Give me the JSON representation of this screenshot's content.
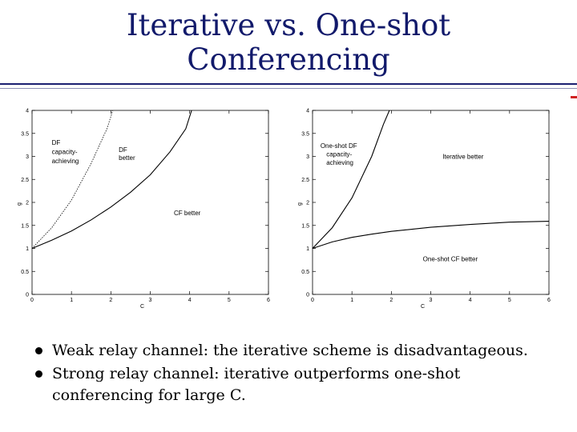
{
  "slide": {
    "title_line1": "Iterative vs. One-shot",
    "title_line2": "Conferencing",
    "bullets": [
      "Weak relay channel: the iterative scheme is disadvantageous.",
      "Strong relay channel: iterative outperforms one-shot conferencing for large C."
    ]
  },
  "chart_data": [
    {
      "type": "line",
      "xlabel": "C",
      "ylabel": "g",
      "xlim": [
        0,
        6
      ],
      "ylim": [
        0,
        4
      ],
      "xticks": [
        0,
        1,
        2,
        3,
        4,
        5,
        6
      ],
      "yticks": [
        0,
        0.5,
        1,
        1.5,
        2,
        2.5,
        3,
        3.5,
        4
      ],
      "grid": false,
      "series": [
        {
          "style": "dotted",
          "points": [
            [
              0,
              1
            ],
            [
              0.5,
              1.45
            ],
            [
              1,
              2.05
            ],
            [
              1.5,
              2.85
            ],
            [
              1.9,
              3.6
            ],
            [
              2.05,
              4
            ]
          ]
        },
        {
          "style": "solid",
          "points": [
            [
              0,
              1
            ],
            [
              0.5,
              1.18
            ],
            [
              1,
              1.38
            ],
            [
              1.5,
              1.62
            ],
            [
              2,
              1.9
            ],
            [
              2.5,
              2.22
            ],
            [
              3,
              2.6
            ],
            [
              3.5,
              3.1
            ],
            [
              3.9,
              3.6
            ],
            [
              4.05,
              4
            ]
          ]
        }
      ],
      "annotations": [
        {
          "text": "DF",
          "x": 0.5,
          "y": 3.25
        },
        {
          "text": "capacity-",
          "x": 0.5,
          "y": 3.05
        },
        {
          "text": "achieving",
          "x": 0.5,
          "y": 2.85
        },
        {
          "text": "DF",
          "x": 2.2,
          "y": 3.1
        },
        {
          "text": "better",
          "x": 2.2,
          "y": 2.92
        },
        {
          "text": "CF better",
          "x": 3.6,
          "y": 1.72
        }
      ]
    },
    {
      "type": "line",
      "xlabel": "C",
      "ylabel": "g",
      "xlim": [
        0,
        6
      ],
      "ylim": [
        0,
        4
      ],
      "xticks": [
        0,
        1,
        2,
        3,
        4,
        5,
        6
      ],
      "yticks": [
        0,
        0.5,
        1,
        1.5,
        2,
        2.5,
        3,
        3.5,
        4
      ],
      "grid": false,
      "series": [
        {
          "style": "solid",
          "points": [
            [
              0,
              1
            ],
            [
              0.5,
              1.45
            ],
            [
              1,
              2.1
            ],
            [
              1.5,
              3.0
            ],
            [
              1.8,
              3.7
            ],
            [
              1.95,
              4
            ]
          ]
        },
        {
          "style": "solid",
          "points": [
            [
              0,
              1
            ],
            [
              0.5,
              1.14
            ],
            [
              1,
              1.24
            ],
            [
              1.5,
              1.31
            ],
            [
              2,
              1.37
            ],
            [
              3,
              1.46
            ],
            [
              4,
              1.52
            ],
            [
              5,
              1.57
            ],
            [
              6,
              1.59
            ]
          ]
        }
      ],
      "annotations": [
        {
          "text": "One-shot DF",
          "x": 0.2,
          "y": 3.18
        },
        {
          "text": "capacity-",
          "x": 0.35,
          "y": 3.0
        },
        {
          "text": "achieving",
          "x": 0.35,
          "y": 2.82
        },
        {
          "text": "Iterative better",
          "x": 3.3,
          "y": 2.95
        },
        {
          "text": "One-shot CF better",
          "x": 2.8,
          "y": 0.72
        }
      ]
    }
  ]
}
